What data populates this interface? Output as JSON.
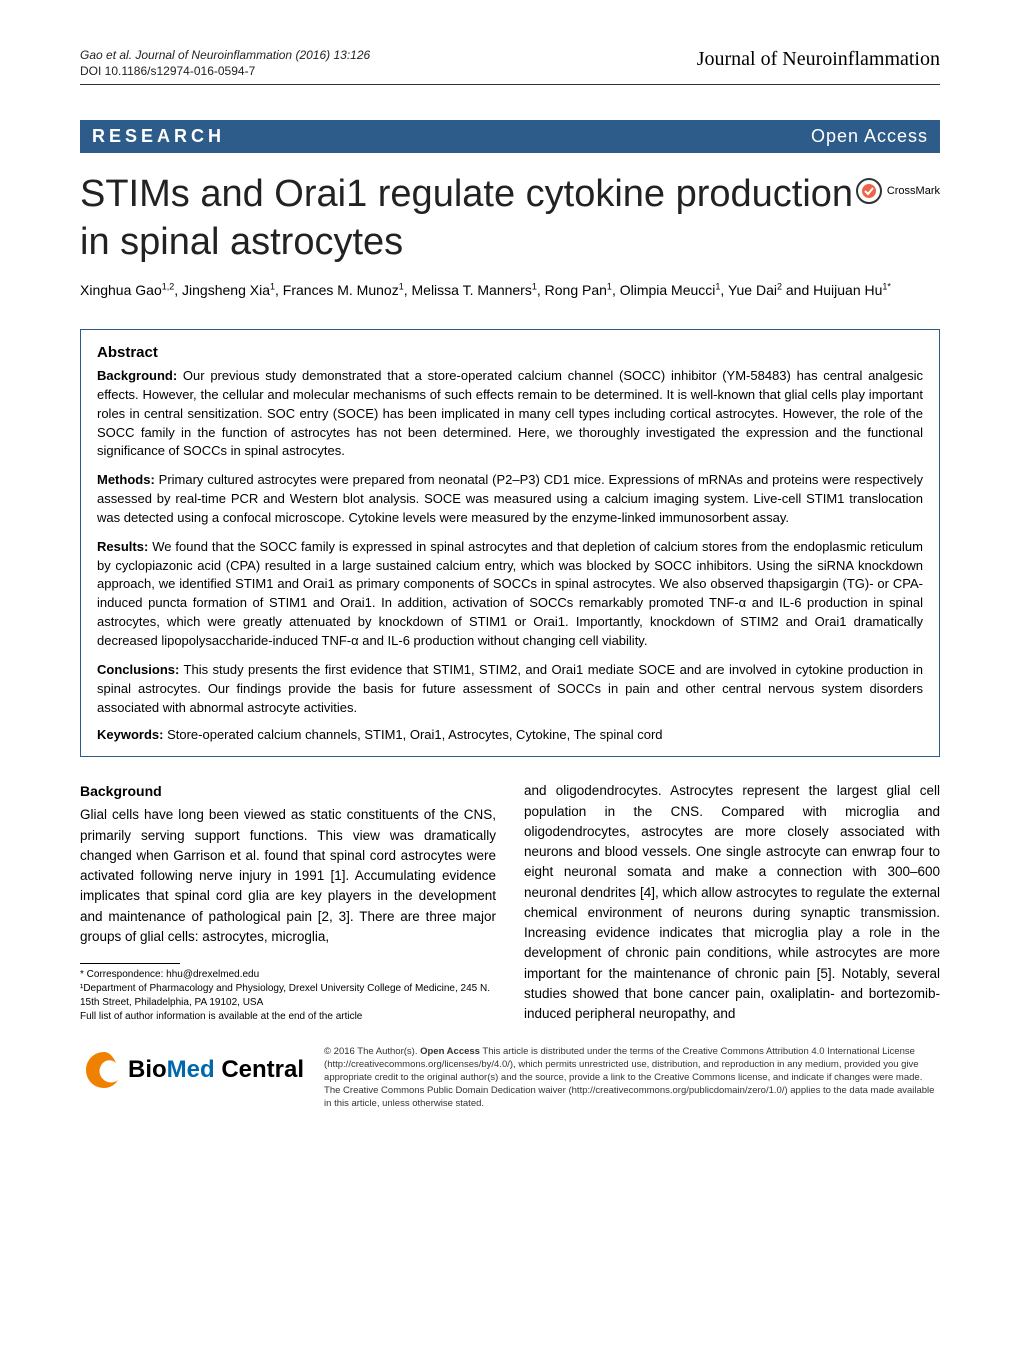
{
  "header": {
    "citation": "Gao et al. Journal of Neuroinflammation  (2016) 13:126",
    "doi": "DOI 10.1186/s12974-016-0594-7",
    "journal": "Journal of Neuroinflammation"
  },
  "banner": {
    "left": "RESEARCH",
    "right": "Open Access"
  },
  "title": "STIMs and Orai1 regulate cytokine production in spinal astrocytes",
  "crossmark": {
    "label": "CrossMark",
    "circle_color": "#ec6449",
    "line_color": "#333"
  },
  "authors_html": "Xinghua Gao<sup>1,2</sup>, Jingsheng Xia<sup>1</sup>, Frances M. Munoz<sup>1</sup>, Melissa T. Manners<sup>1</sup>, Rong Pan<sup>1</sup>, Olimpia Meucci<sup>1</sup>, Yue Dai<sup>2</sup> and Huijuan Hu<sup>1*</sup>",
  "abstract": {
    "heading": "Abstract",
    "sections": [
      {
        "lead": "Background:",
        "text": " Our previous study demonstrated that a store-operated calcium channel (SOCC) inhibitor (YM-58483) has central analgesic effects. However, the cellular and molecular mechanisms of such effects remain to be determined. It is well-known that glial cells play important roles in central sensitization. SOC entry (SOCE) has been implicated in many cell types including cortical astrocytes. However, the role of the SOCC family in the function of astrocytes has not been determined. Here, we thoroughly investigated the expression and the functional significance of SOCCs in spinal astrocytes."
      },
      {
        "lead": "Methods:",
        "text": " Primary cultured astrocytes were prepared from neonatal (P2–P3) CD1 mice. Expressions of mRNAs and proteins were respectively assessed by real-time PCR and Western blot analysis. SOCE was measured using a calcium imaging system. Live-cell STIM1 translocation was detected using a confocal microscope. Cytokine levels were measured by the enzyme-linked immunosorbent assay."
      },
      {
        "lead": "Results:",
        "text": " We found that the SOCC family is expressed in spinal astrocytes and that depletion of calcium stores from the endoplasmic reticulum by cyclopiazonic acid (CPA) resulted in a large sustained calcium entry, which was blocked by SOCC inhibitors. Using the siRNA knockdown approach, we identified STIM1 and Orai1 as primary components of SOCCs in spinal astrocytes. We also observed thapsigargin (TG)- or CPA-induced puncta formation of STIM1 and Orai1. In addition, activation of SOCCs remarkably promoted TNF-α and IL-6 production in spinal astrocytes, which were greatly attenuated by knockdown of STIM1 or Orai1. Importantly, knockdown of STIM2 and Orai1 dramatically decreased lipopolysaccharide-induced TNF-α and IL-6 production without changing cell viability."
      },
      {
        "lead": "Conclusions:",
        "text": " This study presents the first evidence that STIM1, STIM2, and Orai1 mediate SOCE and are involved in cytokine production in spinal astrocytes. Our findings provide the basis for future assessment of SOCCs in pain and other central nervous system disorders associated with abnormal astrocyte activities."
      }
    ],
    "keywords_lead": "Keywords:",
    "keywords": " Store-operated calcium channels, STIM1, Orai1, Astrocytes, Cytokine, The spinal cord"
  },
  "body": {
    "heading": "Background",
    "left": "Glial cells have long been viewed as static constituents of the CNS, primarily serving support functions. This view was dramatically changed when Garrison et al. found that spinal cord astrocytes were activated following nerve injury in 1991 [1]. Accumulating evidence implicates that spinal cord glia are key players in the development and maintenance of pathological pain [2, 3]. There are three major groups of glial cells: astrocytes, microglia,",
    "right": "and oligodendrocytes. Astrocytes represent the largest glial cell population in the CNS. Compared with microglia and oligodendrocytes, astrocytes are more closely associated with neurons and blood vessels. One single astrocyte can enwrap four to eight neuronal somata and make a connection with 300–600 neuronal dendrites [4], which allow astrocytes to regulate the external chemical environment of neurons during synaptic transmission. Increasing evidence indicates that microglia play a role in the development of chronic pain conditions, while astrocytes are more important for the maintenance of chronic pain [5]. Notably, several studies showed that bone cancer pain, oxaliplatin- and bortezomib-induced peripheral neuropathy, and"
  },
  "footnotes": {
    "correspondence": "* Correspondence: hhu@drexelmed.edu",
    "aff": "¹Department of Pharmacology and Physiology, Drexel University College of Medicine, 245 N. 15th Street, Philadelphia, PA 19102, USA",
    "full": "Full list of author information is available at the end of the article"
  },
  "footer": {
    "bmc_left_color": "#f08100",
    "license": "© 2016 The Author(s). Open Access This article is distributed under the terms of the Creative Commons Attribution 4.0 International License (http://creativecommons.org/licenses/by/4.0/), which permits unrestricted use, distribution, and reproduction in any medium, provided you give appropriate credit to the original author(s) and the source, provide a link to the Creative Commons license, and indicate if changes were made. The Creative Commons Public Domain Dedication waiver (http://creativecommons.org/publicdomain/zero/1.0/) applies to the data made available in this article, unless otherwise stated."
  },
  "colors": {
    "banner_bg": "#2e5c8a",
    "border": "#2e5c8a"
  }
}
